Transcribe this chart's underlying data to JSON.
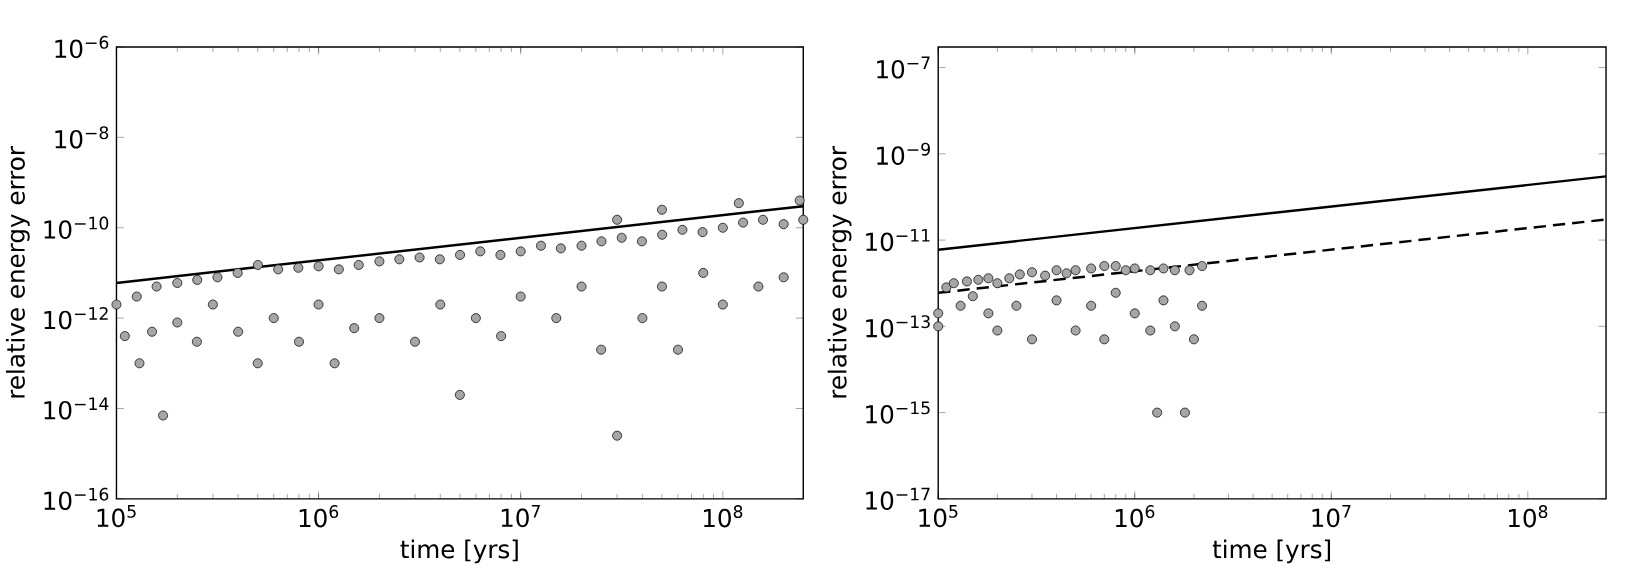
{
  "chart_data": [
    {
      "type": "scatter",
      "xlabel": "time [yrs]",
      "ylabel": "relative energy error",
      "log": "xy",
      "xlim": [
        100000,
        250000000
      ],
      "ylim": [
        1e-16,
        1e-06
      ],
      "xticks": [
        {
          "value": 100000.0,
          "label": "10$^{5}$"
        },
        {
          "value": 1000000.0,
          "label": "10$^{6}$"
        },
        {
          "value": 10000000.0,
          "label": "10$^{7}$"
        },
        {
          "value": 100000000.0,
          "label": "10$^{8}$"
        }
      ],
      "yticks": [
        {
          "value": 1e-16,
          "label": "10$^{−16}$"
        },
        {
          "value": 1e-14,
          "label": "10$^{−14}$"
        },
        {
          "value": 1e-12,
          "label": "10$^{−12}$"
        },
        {
          "value": 1e-10,
          "label": "10$^{−10}$"
        },
        {
          "value": 1e-08,
          "label": "10$^{−8}$"
        },
        {
          "value": 1e-06,
          "label": "10$^{−6}$"
        }
      ],
      "series": [
        {
          "color": "#a6a6a6",
          "marker": "circle",
          "x": [
            100000.0,
            126000.0,
            158000.0,
            200000.0,
            251000.0,
            316000.0,
            398000.0,
            501000.0,
            631000.0,
            794000.0,
            1000000.0,
            1260000.0,
            1580000.0,
            2000000.0,
            2510000.0,
            3160000.0,
            3980000.0,
            5010000.0,
            6310000.0,
            7940000.0,
            10000000.0,
            12600000.0,
            15800000.0,
            20000000.0,
            25100000.0,
            31600000.0,
            39800000.0,
            50100000.0,
            63100000.0,
            79400000.0,
            100000000.0,
            126000000.0,
            158000000.0,
            200000000.0,
            250000000.0,
            110000.0,
            130000.0,
            150000.0,
            170000.0,
            200000.0,
            250000.0,
            300000.0,
            400000.0,
            500000.0,
            600000.0,
            800000.0,
            1000000.0,
            1200000.0,
            1500000.0,
            2000000.0,
            3000000.0,
            4000000.0,
            5000000.0,
            6000000.0,
            8000000.0,
            10000000.0,
            15000000.0,
            20000000.0,
            25000000.0,
            30000000.0,
            40000000.0,
            50000000.0,
            60000000.0,
            80000000.0,
            100000000.0,
            150000000.0,
            200000000.0,
            30000000.0,
            120000000.0,
            240000000.0,
            50000000.0
          ],
          "values": [
            2e-12,
            3e-12,
            5e-12,
            6e-12,
            7e-12,
            8e-12,
            1e-11,
            1.5e-11,
            1.2e-11,
            1.3e-11,
            1.4e-11,
            1.2e-11,
            1.5e-11,
            1.8e-11,
            2e-11,
            2.2e-11,
            2e-11,
            2.5e-11,
            3e-11,
            2.5e-11,
            3e-11,
            4e-11,
            3.5e-11,
            4e-11,
            5e-11,
            6e-11,
            5e-11,
            7e-11,
            9e-11,
            8e-11,
            1e-10,
            1.3e-10,
            1.5e-10,
            1.2e-10,
            1.5e-10,
            4e-13,
            1e-13,
            5e-13,
            7e-15,
            8e-13,
            3e-13,
            2e-12,
            5e-13,
            1e-13,
            1e-12,
            3e-13,
            2e-12,
            1e-13,
            6e-13,
            1e-12,
            3e-13,
            2e-12,
            2e-14,
            1e-12,
            4e-13,
            3e-12,
            1e-12,
            5e-12,
            2e-13,
            2.5e-15,
            1e-12,
            5e-12,
            2e-13,
            1e-11,
            2e-12,
            5e-12,
            8e-12,
            1.5e-10,
            3.5e-10,
            4e-10,
            2.5e-10
          ]
        },
        {
          "type": "line",
          "color": "#000000",
          "line_style": "solid",
          "x": [
            100000.0,
            250000000.0
          ],
          "values": [
            6e-12,
            3e-10
          ]
        }
      ]
    },
    {
      "type": "scatter",
      "xlabel": "time [yrs]",
      "ylabel": "relative energy error",
      "log": "xy",
      "xlim": [
        100000,
        250000000
      ],
      "ylim": [
        1e-17,
        3e-07
      ],
      "xticks": [
        {
          "value": 100000.0,
          "label": "10$^{5}$"
        },
        {
          "value": 1000000.0,
          "label": "10$^{6}$"
        },
        {
          "value": 10000000.0,
          "label": "10$^{7}$"
        },
        {
          "value": 100000000.0,
          "label": "10$^{8}$"
        }
      ],
      "yticks": [
        {
          "value": 1e-17,
          "label": "10$^{−17}$"
        },
        {
          "value": 1e-15,
          "label": "10$^{−15}$"
        },
        {
          "value": 1e-13,
          "label": "10$^{−13}$"
        },
        {
          "value": 1e-11,
          "label": "10$^{−11}$"
        },
        {
          "value": 1e-09,
          "label": "10$^{−9}$"
        },
        {
          "value": 1e-07,
          "label": "10$^{−7}$"
        }
      ],
      "series": [
        {
          "color": "#a6a6a6",
          "marker": "circle",
          "x": [
            100000.0,
            110000.0,
            120000.0,
            140000.0,
            160000.0,
            180000.0,
            200000.0,
            230000.0,
            260000.0,
            300000.0,
            350000.0,
            400000.0,
            450000.0,
            500000.0,
            600000.0,
            700000.0,
            800000.0,
            900000.0,
            1000000.0,
            1200000.0,
            1400000.0,
            1600000.0,
            1900000.0,
            2200000.0,
            100000.0,
            130000.0,
            150000.0,
            180000.0,
            200000.0,
            250000.0,
            300000.0,
            400000.0,
            500000.0,
            600000.0,
            700000.0,
            800000.0,
            1000000.0,
            1200000.0,
            1400000.0,
            1600000.0,
            2000000.0,
            2200000.0,
            1300000.0,
            1800000.0
          ],
          "values": [
            2e-13,
            8e-13,
            1e-12,
            1.1e-12,
            1.2e-12,
            1.3e-12,
            1e-12,
            1.3e-12,
            1.6e-12,
            1.8e-12,
            1.5e-12,
            2e-12,
            1.7e-12,
            2e-12,
            2.2e-12,
            2.5e-12,
            2.5e-12,
            2e-12,
            2.2e-12,
            2e-12,
            2.2e-12,
            2e-12,
            2e-12,
            2.5e-12,
            1e-13,
            3e-13,
            5e-13,
            2e-13,
            8e-14,
            3e-13,
            5e-14,
            4e-13,
            8e-14,
            3e-13,
            5e-14,
            6e-13,
            2e-13,
            8e-14,
            4e-13,
            1e-13,
            5e-14,
            3e-13,
            1e-15,
            1e-15
          ]
        },
        {
          "type": "line",
          "color": "#000000",
          "line_style": "solid",
          "x": [
            100000.0,
            250000000.0
          ],
          "values": [
            6e-12,
            3e-10
          ]
        },
        {
          "type": "line",
          "color": "#000000",
          "line_style": "dashed",
          "x": [
            100000.0,
            250000000.0
          ],
          "values": [
            6e-13,
            3e-11
          ]
        }
      ]
    }
  ]
}
